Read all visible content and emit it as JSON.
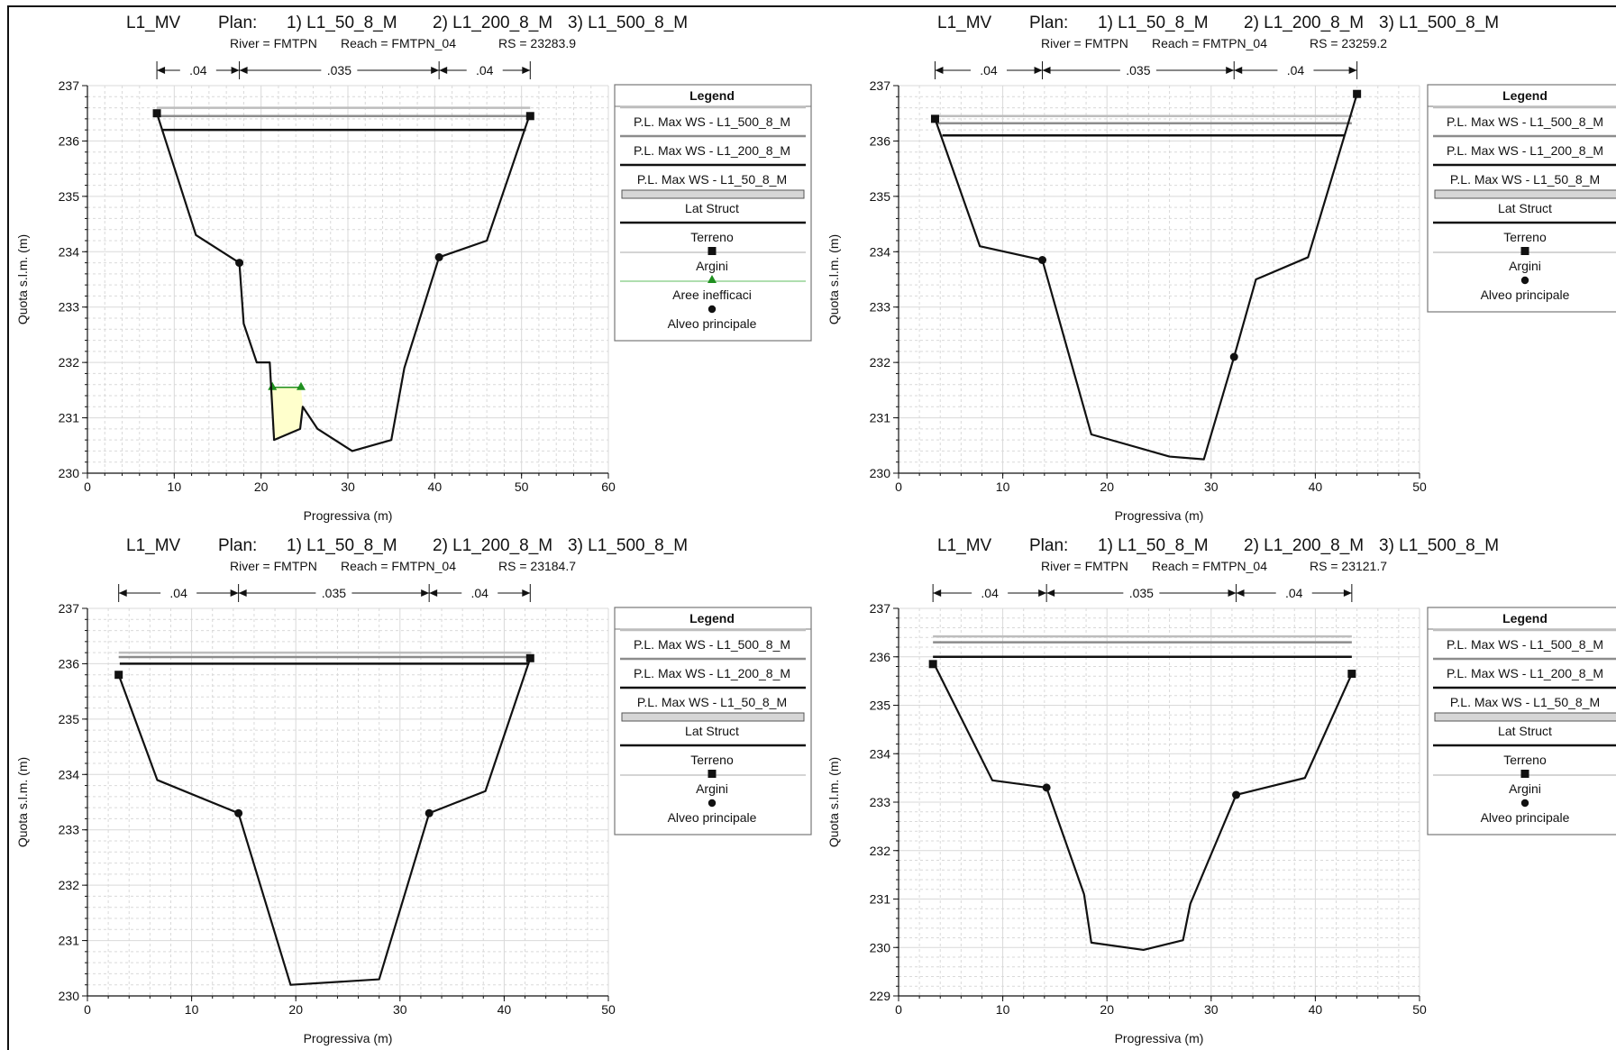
{
  "page": {
    "background": "#ffffff"
  },
  "colors": {
    "terrain": "#111111",
    "ws_500": "#bdbdbd",
    "ws_200": "#8c8c8c",
    "ws_50": "#111111",
    "lat_struct_fill": "#d6d6d6",
    "ineffective": "#1f8f1f",
    "ineffective_fill": "#ffffcc",
    "grid": "#d9d9d9"
  },
  "chart_data": [
    {
      "type": "line",
      "header": {
        "project": "L1_MV",
        "plan_label": "Plan:",
        "plans": [
          "1) L1_50_8_M",
          "2) L1_200_8_M",
          "3) L1_500_8_M"
        ],
        "river": "River = FMTPN",
        "reach": "Reach = FMTPN_04",
        "rs": "RS = 23283.9"
      },
      "xlabel": "Progressiva (m)",
      "ylabel": "Quota s.l.m. (m)",
      "xlim": [
        0,
        60
      ],
      "ylim": [
        230,
        237
      ],
      "xticks": [
        "0",
        "10",
        "20",
        "30",
        "40",
        "50",
        "60"
      ],
      "yticks": [
        "230",
        "231",
        "232",
        "233",
        "234",
        "235",
        "236",
        "237"
      ],
      "xtick_values": [
        0,
        10,
        20,
        30,
        40,
        50,
        60
      ],
      "ytick_values": [
        230,
        231,
        232,
        233,
        234,
        235,
        236,
        237
      ],
      "grid": true,
      "mannings": {
        "breaks": [
          8,
          17.5,
          40.5,
          51
        ],
        "labels": [
          ".04",
          ".035",
          ".04"
        ]
      },
      "terrain": [
        [
          8,
          236.5
        ],
        [
          12.5,
          234.3
        ],
        [
          17.5,
          233.8
        ],
        [
          18,
          232.7
        ],
        [
          19.5,
          232
        ],
        [
          21,
          232
        ],
        [
          21.5,
          230.6
        ],
        [
          24.5,
          230.8
        ],
        [
          24.8,
          231.2
        ],
        [
          26.5,
          230.8
        ],
        [
          30.5,
          230.4
        ],
        [
          35,
          230.6
        ],
        [
          36.5,
          231.9
        ],
        [
          40.5,
          233.9
        ],
        [
          46,
          234.2
        ],
        [
          51,
          236.5
        ]
      ],
      "water_surfaces": [
        {
          "name": "P.L. Max WS - L1_500_8_M",
          "elev": 236.6,
          "x": [
            8,
            51
          ]
        },
        {
          "name": "P.L. Max WS - L1_200_8_M",
          "elev": 236.45,
          "x": [
            8,
            51
          ]
        },
        {
          "name": "P.L. Max WS - L1_50_8_M",
          "elev": 236.2,
          "x": [
            8.5,
            50.5
          ]
        }
      ],
      "levees": [
        [
          8,
          236.5
        ],
        [
          51,
          236.45
        ]
      ],
      "bank_stations": [
        [
          17.5,
          233.8
        ],
        [
          40.5,
          233.9
        ]
      ],
      "ineffective_areas": [
        [
          21.3,
          231.55
        ],
        [
          24.6,
          231.55
        ]
      ],
      "legend": {
        "title": "Legend",
        "items": [
          "P.L. Max WS - L1_500_8_M",
          "P.L. Max WS - L1_200_8_M",
          "P.L. Max WS - L1_50_8_M",
          "Lat Struct",
          "Terreno",
          "Argini",
          "Aree inefficaci",
          "Alveo principale"
        ]
      }
    },
    {
      "type": "line",
      "header": {
        "project": "L1_MV",
        "plan_label": "Plan:",
        "plans": [
          "1) L1_50_8_M",
          "2) L1_200_8_M",
          "3) L1_500_8_M"
        ],
        "river": "River = FMTPN",
        "reach": "Reach = FMTPN_04",
        "rs": "RS = 23259.2"
      },
      "xlabel": "Progressiva (m)",
      "ylabel": "Quota s.l.m. (m)",
      "xlim": [
        0,
        50
      ],
      "ylim": [
        230,
        237
      ],
      "xticks": [
        "0",
        "10",
        "20",
        "30",
        "40",
        "50"
      ],
      "yticks": [
        "230",
        "231",
        "232",
        "233",
        "234",
        "235",
        "236",
        "237"
      ],
      "xtick_values": [
        0,
        10,
        20,
        30,
        40,
        50
      ],
      "ytick_values": [
        230,
        231,
        232,
        233,
        234,
        235,
        236,
        237
      ],
      "grid": true,
      "mannings": {
        "breaks": [
          3.5,
          13.8,
          32.2,
          44
        ],
        "labels": [
          ".04",
          ".035",
          ".04"
        ]
      },
      "terrain": [
        [
          3.5,
          236.4
        ],
        [
          7.8,
          234.1
        ],
        [
          13.8,
          233.85
        ],
        [
          18.5,
          230.7
        ],
        [
          26,
          230.3
        ],
        [
          29.3,
          230.25
        ],
        [
          32.2,
          232.1
        ],
        [
          34.3,
          233.5
        ],
        [
          39.3,
          233.9
        ],
        [
          44,
          236.85
        ]
      ],
      "water_surfaces": [
        {
          "name": "P.L. Max WS - L1_500_8_M",
          "elev": 236.45,
          "x": [
            3.6,
            43.6
          ]
        },
        {
          "name": "P.L. Max WS - L1_200_8_M",
          "elev": 236.32,
          "x": [
            3.7,
            43.5
          ]
        },
        {
          "name": "P.L. Max WS - L1_50_8_M",
          "elev": 236.1,
          "x": [
            4.2,
            42.8
          ]
        }
      ],
      "levees": [
        [
          3.5,
          236.4
        ],
        [
          44,
          236.85
        ]
      ],
      "bank_stations": [
        [
          13.8,
          233.85
        ],
        [
          32.2,
          232.1
        ]
      ],
      "ineffective_areas": [],
      "legend": {
        "title": "Legend",
        "items": [
          "P.L. Max WS - L1_500_8_M",
          "P.L. Max WS - L1_200_8_M",
          "P.L. Max WS - L1_50_8_M",
          "Lat Struct",
          "Terreno",
          "Argini",
          "Alveo principale"
        ]
      }
    },
    {
      "type": "line",
      "header": {
        "project": "L1_MV",
        "plan_label": "Plan:",
        "plans": [
          "1) L1_50_8_M",
          "2) L1_200_8_M",
          "3) L1_500_8_M"
        ],
        "river": "River = FMTPN",
        "reach": "Reach = FMTPN_04",
        "rs": "RS = 23184.7"
      },
      "xlabel": "Progressiva (m)",
      "ylabel": "Quota s.l.m. (m)",
      "xlim": [
        0,
        50
      ],
      "ylim": [
        230,
        237
      ],
      "xticks": [
        "0",
        "10",
        "20",
        "30",
        "40",
        "50"
      ],
      "yticks": [
        "230",
        "231",
        "232",
        "233",
        "234",
        "235",
        "236",
        "237"
      ],
      "xtick_values": [
        0,
        10,
        20,
        30,
        40,
        50
      ],
      "ytick_values": [
        230,
        231,
        232,
        233,
        234,
        235,
        236,
        237
      ],
      "grid": true,
      "mannings": {
        "breaks": [
          3,
          14.5,
          32.8,
          42.5
        ],
        "labels": [
          ".04",
          ".035",
          ".04"
        ]
      },
      "terrain": [
        [
          3,
          235.8
        ],
        [
          6.7,
          233.9
        ],
        [
          14.5,
          233.3
        ],
        [
          19.5,
          230.2
        ],
        [
          28,
          230.3
        ],
        [
          32.8,
          233.3
        ],
        [
          38.2,
          233.7
        ],
        [
          42.5,
          236.1
        ]
      ],
      "water_surfaces": [
        {
          "name": "P.L. Max WS - L1_500_8_M",
          "elev": 236.2,
          "x": [
            3,
            42.6
          ]
        },
        {
          "name": "P.L. Max WS - L1_200_8_M",
          "elev": 236.12,
          "x": [
            3,
            42.6
          ]
        },
        {
          "name": "P.L. Max WS - L1_50_8_M",
          "elev": 236.0,
          "x": [
            3.1,
            42.4
          ]
        }
      ],
      "levees": [
        [
          3,
          235.8
        ],
        [
          42.5,
          236.1
        ]
      ],
      "bank_stations": [
        [
          14.5,
          233.3
        ],
        [
          32.8,
          233.3
        ]
      ],
      "ineffective_areas": [],
      "legend": {
        "title": "Legend",
        "items": [
          "P.L. Max WS - L1_500_8_M",
          "P.L. Max WS - L1_200_8_M",
          "P.L. Max WS - L1_50_8_M",
          "Lat Struct",
          "Terreno",
          "Argini",
          "Alveo principale"
        ]
      }
    },
    {
      "type": "line",
      "header": {
        "project": "L1_MV",
        "plan_label": "Plan:",
        "plans": [
          "1) L1_50_8_M",
          "2) L1_200_8_M",
          "3) L1_500_8_M"
        ],
        "river": "River = FMTPN",
        "reach": "Reach = FMTPN_04",
        "rs": "RS = 23121.7"
      },
      "xlabel": "Progressiva (m)",
      "ylabel": "Quota s.l.m. (m)",
      "xlim": [
        0,
        50
      ],
      "ylim": [
        229,
        237
      ],
      "xticks": [
        "0",
        "10",
        "20",
        "30",
        "40",
        "50"
      ],
      "yticks": [
        "229",
        "230",
        "231",
        "232",
        "233",
        "234",
        "235",
        "236",
        "237"
      ],
      "xtick_values": [
        0,
        10,
        20,
        30,
        40,
        50
      ],
      "ytick_values": [
        229,
        230,
        231,
        232,
        233,
        234,
        235,
        236,
        237
      ],
      "grid": true,
      "mannings": {
        "breaks": [
          3.3,
          14.2,
          32.4,
          43.5
        ],
        "labels": [
          ".04",
          ".035",
          ".04"
        ]
      },
      "terrain": [
        [
          3.3,
          235.9
        ],
        [
          9,
          233.45
        ],
        [
          14.2,
          233.3
        ],
        [
          17.8,
          231.1
        ],
        [
          18.5,
          230.1
        ],
        [
          23.5,
          229.95
        ],
        [
          27.3,
          230.15
        ],
        [
          28,
          230.9
        ],
        [
          32.4,
          233.15
        ],
        [
          39,
          233.5
        ],
        [
          43.5,
          235.65
        ]
      ],
      "water_surfaces": [
        {
          "name": "P.L. Max WS - L1_500_8_M",
          "elev": 236.42,
          "x": [
            3.3,
            43.5
          ]
        },
        {
          "name": "P.L. Max WS - L1_200_8_M",
          "elev": 236.3,
          "x": [
            3.3,
            43.5
          ]
        },
        {
          "name": "P.L. Max WS - L1_50_8_M",
          "elev": 236.0,
          "x": [
            3.3,
            43.5
          ]
        }
      ],
      "levees": [
        [
          3.3,
          235.85
        ],
        [
          43.5,
          235.65
        ]
      ],
      "bank_stations": [
        [
          14.2,
          233.3
        ],
        [
          32.4,
          233.15
        ]
      ],
      "ineffective_areas": [],
      "legend": {
        "title": "Legend",
        "items": [
          "P.L. Max WS - L1_500_8_M",
          "P.L. Max WS - L1_200_8_M",
          "P.L. Max WS - L1_50_8_M",
          "Lat Struct",
          "Terreno",
          "Argini",
          "Alveo principale"
        ]
      }
    }
  ]
}
